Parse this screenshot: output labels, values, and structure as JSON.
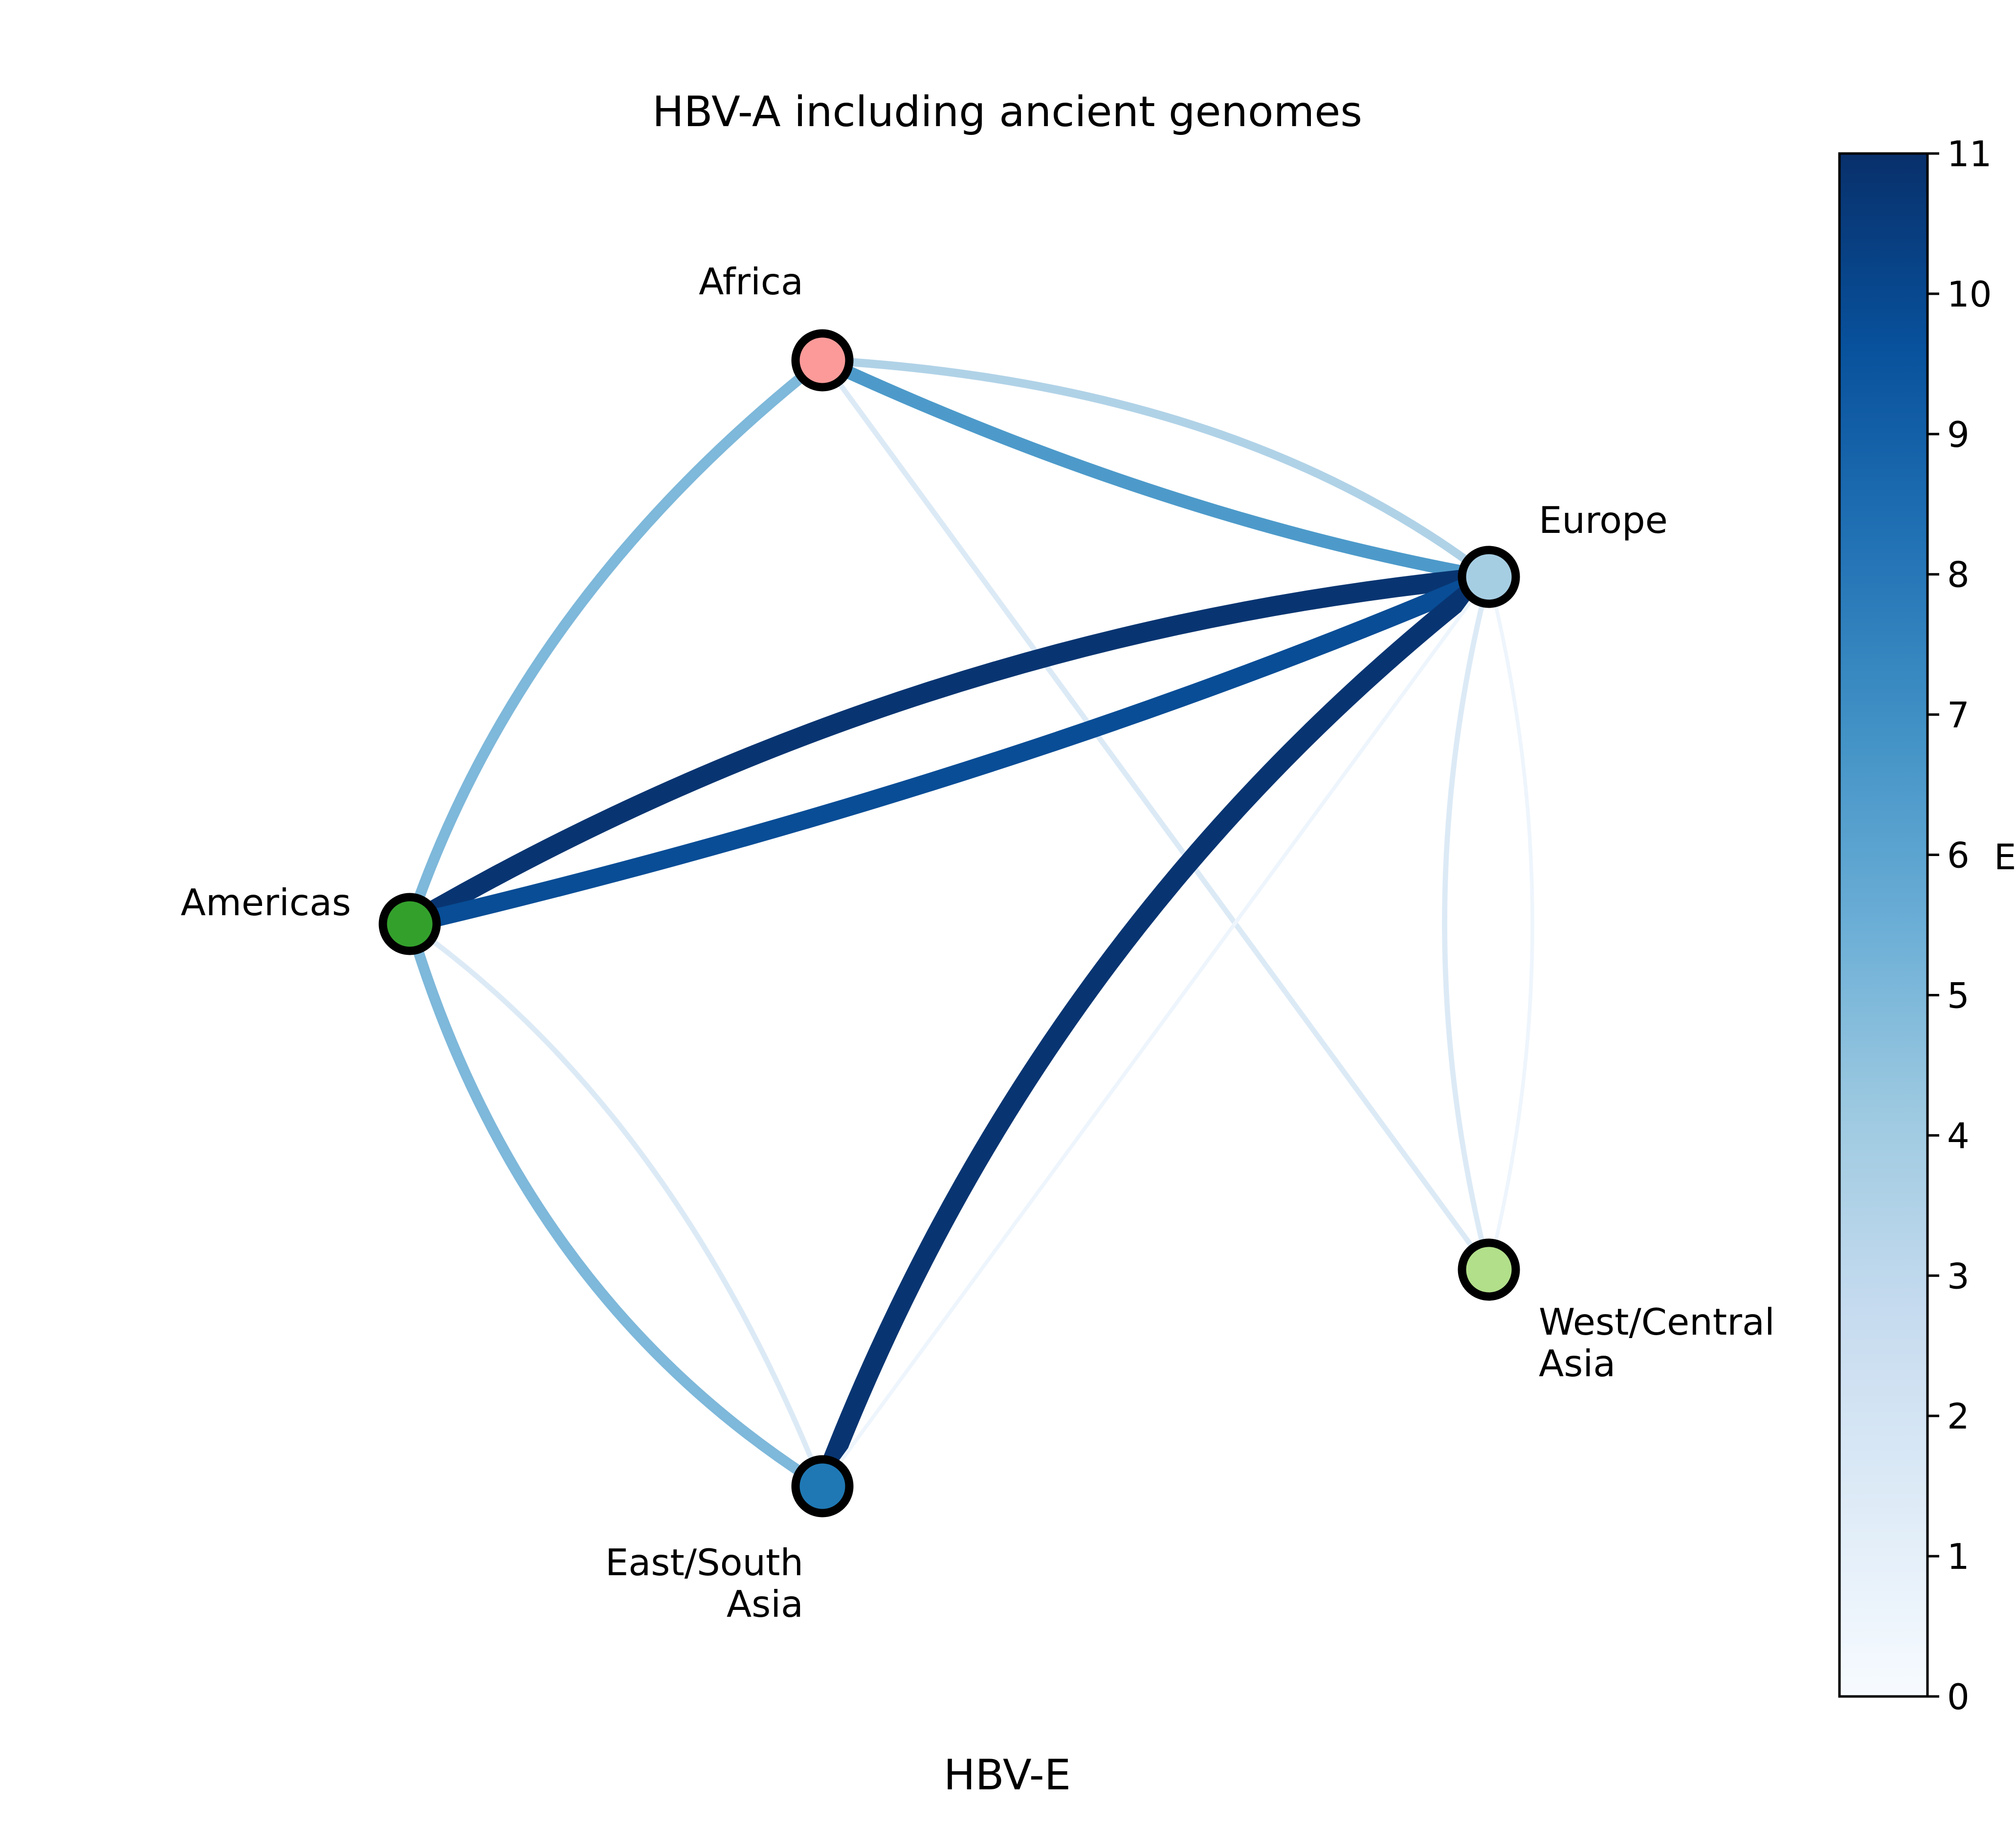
{
  "figure": {
    "title": "HBV-A including ancient genomes",
    "bottom_label": "HBV-E"
  },
  "nodes": [
    {
      "id": "africa",
      "label_lines": [
        "Africa"
      ],
      "color": "#fb9a99"
    },
    {
      "id": "europe",
      "label_lines": [
        "Europe"
      ],
      "color": "#a6cee3"
    },
    {
      "id": "americas",
      "label_lines": [
        "Americas"
      ],
      "color": "#33a02c"
    },
    {
      "id": "eastsouth",
      "label_lines": [
        "East/South",
        "Asia"
      ],
      "color": "#1f78b4"
    },
    {
      "id": "westcentral",
      "label_lines": [
        "West/Central",
        "Asia"
      ],
      "color": "#b2df8a"
    }
  ],
  "edges": [
    {
      "source": "africa",
      "target": "europe",
      "value": 3.5,
      "curve": "outer"
    },
    {
      "source": "africa",
      "target": "europe",
      "value": 6.5,
      "curve": "inner"
    },
    {
      "source": "africa",
      "target": "americas",
      "value": 5,
      "curve": "outer"
    },
    {
      "source": "africa",
      "target": "westcentral",
      "value": 1.5,
      "curve": "straight"
    },
    {
      "source": "americas",
      "target": "europe",
      "value": 10.8,
      "curve": "upper"
    },
    {
      "source": "americas",
      "target": "europe",
      "value": 9.8,
      "curve": "lower"
    },
    {
      "source": "americas",
      "target": "eastsouth",
      "value": 5,
      "curve": "outer"
    },
    {
      "source": "americas",
      "target": "eastsouth",
      "value": 1.5,
      "curve": "inner"
    },
    {
      "source": "europe",
      "target": "eastsouth",
      "value": 10.8,
      "curve": "inner"
    },
    {
      "source": "europe",
      "target": "eastsouth",
      "value": 0.5,
      "curve": "straight"
    },
    {
      "source": "europe",
      "target": "westcentral",
      "value": 1.5,
      "curve": "left"
    },
    {
      "source": "europe",
      "target": "westcentral",
      "value": 0.5,
      "curve": "right"
    }
  ],
  "colorbar": {
    "min": 0,
    "max": 11,
    "ticks": [
      "0",
      "1",
      "2",
      "3",
      "4",
      "5",
      "6",
      "7",
      "8",
      "9",
      "10",
      "11"
    ],
    "label_visible": "E",
    "colormap": "Blues",
    "colormap_stops": [
      "#f7fbff",
      "#deebf7",
      "#c6dbef",
      "#9ecae1",
      "#6baed6",
      "#4292c6",
      "#2171b5",
      "#08519c",
      "#08306b"
    ]
  }
}
